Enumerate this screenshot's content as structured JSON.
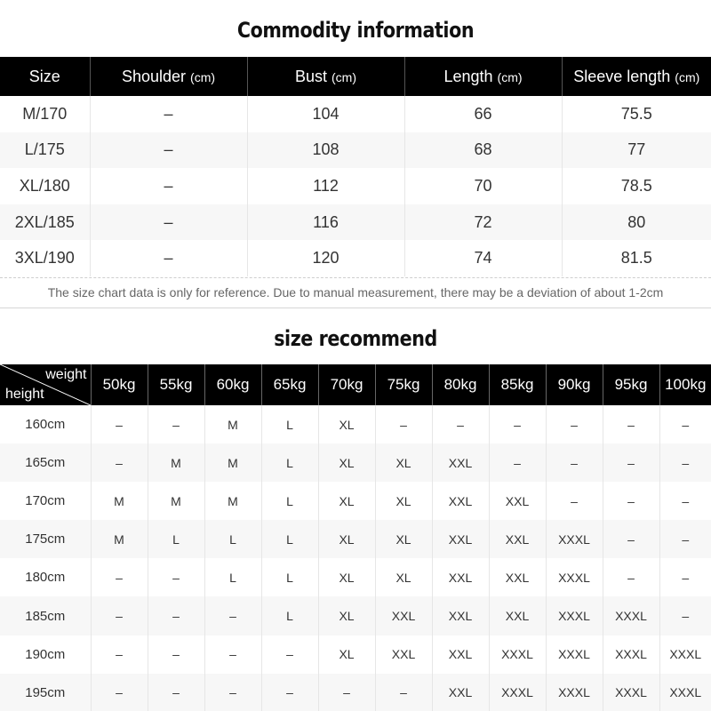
{
  "commodity": {
    "title": "Commodity information",
    "headers": [
      {
        "label": "Size",
        "unit": ""
      },
      {
        "label": "Shoulder ",
        "unit": "(cm)"
      },
      {
        "label": "Bust ",
        "unit": "(cm)"
      },
      {
        "label": "Length ",
        "unit": "(cm)"
      },
      {
        "label": "Sleeve length ",
        "unit": "(cm)"
      }
    ],
    "rows": [
      [
        "M/170",
        "–",
        "104",
        "66",
        "75.5"
      ],
      [
        "L/175",
        "–",
        "108",
        "68",
        "77"
      ],
      [
        "XL/180",
        "–",
        "112",
        "70",
        "78.5"
      ],
      [
        "2XL/185",
        "–",
        "116",
        "72",
        "80"
      ],
      [
        "3XL/190",
        "–",
        "120",
        "74",
        "81.5"
      ]
    ],
    "note": "The size chart data is only for reference. Due to manual measurement, there may be a deviation of about 1-2cm"
  },
  "recommend": {
    "title": "size recommend",
    "corner_weight": "weight",
    "corner_height": "height",
    "weights": [
      "50kg",
      "55kg",
      "60kg",
      "65kg",
      "70kg",
      "75kg",
      "80kg",
      "85kg",
      "90kg",
      "95kg",
      "100kg"
    ],
    "rows": [
      {
        "height": "160cm",
        "sizes": [
          "–",
          "–",
          "M",
          "L",
          "XL",
          "–",
          "–",
          "–",
          "–",
          "–",
          "–"
        ]
      },
      {
        "height": "165cm",
        "sizes": [
          "–",
          "M",
          "M",
          "L",
          "XL",
          "XL",
          "XXL",
          "–",
          "–",
          "–",
          "–"
        ]
      },
      {
        "height": "170cm",
        "sizes": [
          "M",
          "M",
          "M",
          "L",
          "XL",
          "XL",
          "XXL",
          "XXL",
          "–",
          "–",
          "–"
        ]
      },
      {
        "height": "175cm",
        "sizes": [
          "M",
          "L",
          "L",
          "L",
          "XL",
          "XL",
          "XXL",
          "XXL",
          "XXXL",
          "–",
          "–"
        ]
      },
      {
        "height": "180cm",
        "sizes": [
          "–",
          "–",
          "L",
          "L",
          "XL",
          "XL",
          "XXL",
          "XXL",
          "XXXL",
          "–",
          "–"
        ]
      },
      {
        "height": "185cm",
        "sizes": [
          "–",
          "–",
          "–",
          "L",
          "XL",
          "XXL",
          "XXL",
          "XXL",
          "XXXL",
          "XXXL",
          "–"
        ]
      },
      {
        "height": "190cm",
        "sizes": [
          "–",
          "–",
          "–",
          "–",
          "XL",
          "XXL",
          "XXL",
          "XXXL",
          "XXXL",
          "XXXL",
          "XXXL"
        ]
      },
      {
        "height": "195cm",
        "sizes": [
          "–",
          "–",
          "–",
          "–",
          "–",
          "–",
          "XXL",
          "XXXL",
          "XXXL",
          "XXXL",
          "XXXL"
        ]
      }
    ]
  }
}
